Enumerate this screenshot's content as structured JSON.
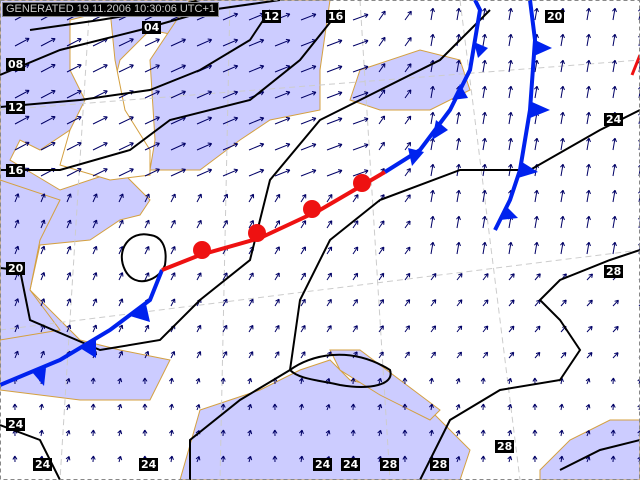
{
  "header": {
    "generated": "GENERATED 19.11.2006 10:30:06 UTC+1"
  },
  "colors": {
    "sea": "#ccccff",
    "land": "#ffffff",
    "coast": "#d4a040",
    "isobar": "#000000",
    "cold_front": "#0022ee",
    "warm_front": "#ee1111",
    "wind": "#000066"
  },
  "isobar_labels": {
    "top": [
      "04",
      "12",
      "16",
      "20"
    ],
    "left": [
      "08",
      "12",
      "16",
      "20",
      "24"
    ],
    "right": [
      "24",
      "28"
    ],
    "bottom": [
      "24",
      "24",
      "24",
      "24",
      "28",
      "28",
      "28"
    ]
  },
  "icons": {
    "wind": "wind-arrow-icon",
    "cold_front": "cold-front-triangle-icon",
    "warm_front": "warm-front-semicircle-icon"
  }
}
